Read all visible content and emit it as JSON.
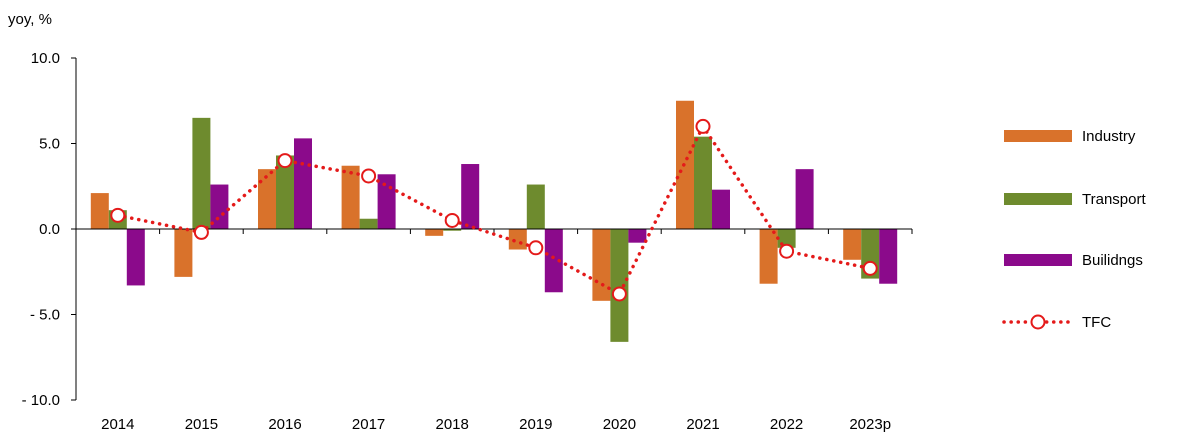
{
  "chart_data": {
    "type": "bar",
    "ylabel": "yoy, %",
    "ylim": [
      -10,
      10
    ],
    "yticks": [
      "10.0",
      "5.0",
      "0.0",
      "- 5.0",
      "- 10.0"
    ],
    "ytick_values": [
      10,
      5,
      0,
      -5,
      -10
    ],
    "categories": [
      "2014",
      "2015",
      "2016",
      "2017",
      "2018",
      "2019",
      "2020",
      "2021",
      "2022",
      "2023p"
    ],
    "series": [
      {
        "name": "Industry",
        "type": "bar",
        "color": "#D9722B",
        "values": [
          2.1,
          -2.8,
          3.5,
          3.7,
          -0.4,
          -1.2,
          -4.2,
          7.5,
          -3.2,
          -1.8
        ]
      },
      {
        "name": "Transport",
        "type": "bar",
        "color": "#6E8B2E",
        "values": [
          1.1,
          6.5,
          4.3,
          0.6,
          -0.1,
          2.6,
          -6.6,
          5.4,
          -1.1,
          -2.9
        ]
      },
      {
        "name": "Builidngs",
        "type": "bar",
        "color": "#8B0A8B",
        "values": [
          -3.3,
          2.6,
          5.3,
          3.2,
          3.8,
          -3.7,
          -0.8,
          2.3,
          3.5,
          -3.2
        ]
      },
      {
        "name": "TFC",
        "type": "line",
        "style": "dotted",
        "marker": "circle",
        "color": "#E41A1A",
        "values": [
          0.8,
          -0.2,
          4.0,
          3.1,
          0.5,
          -1.1,
          -3.8,
          6.0,
          -1.3,
          -2.3
        ]
      }
    ],
    "legend_position": "right",
    "grid": false
  }
}
